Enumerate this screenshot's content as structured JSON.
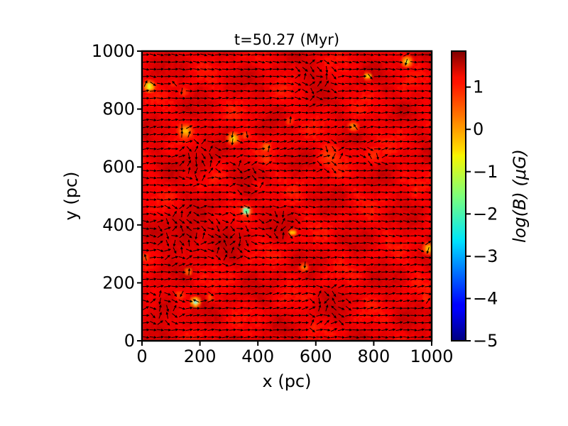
{
  "chart_data": {
    "type": "heatmap",
    "title": "t=50.27 (Myr)",
    "xlabel": "x (pc)",
    "ylabel": "y (pc)",
    "xlim": [
      0,
      1000
    ],
    "ylim": [
      0,
      1000
    ],
    "x_ticks": [
      "0",
      "200",
      "400",
      "600",
      "800",
      "1000"
    ],
    "y_ticks": [
      "0",
      "200",
      "400",
      "600",
      "800",
      "1000"
    ],
    "x_tick_values": [
      0,
      200,
      400,
      600,
      800,
      1000
    ],
    "y_tick_values": [
      0,
      200,
      400,
      600,
      800,
      1000
    ],
    "colorbar": {
      "label": "log(B) (μG)",
      "range": [
        -5,
        1.85
      ],
      "colormap": "jet",
      "ticks": [
        "1",
        "0",
        "−1",
        "−2",
        "−3",
        "−4",
        "−5"
      ],
      "tick_values": [
        1,
        0,
        -1,
        -2,
        -3,
        -4,
        -5
      ]
    },
    "background_value": 1.1,
    "overlay": "magnetic field direction vectors (black arrows)",
    "low_field_regions": [
      {
        "x": 25,
        "y": 880,
        "r": 25,
        "min": -1.5
      },
      {
        "x": 110,
        "y": 890,
        "r": 18,
        "min": 0.6
      },
      {
        "x": 145,
        "y": 860,
        "r": 20,
        "min": 0.4
      },
      {
        "x": 150,
        "y": 725,
        "r": 30,
        "min": -0.6
      },
      {
        "x": 315,
        "y": 700,
        "r": 30,
        "min": -1.0
      },
      {
        "x": 355,
        "y": 710,
        "r": 18,
        "min": 0.2
      },
      {
        "x": 430,
        "y": 670,
        "r": 18,
        "min": -0.2
      },
      {
        "x": 430,
        "y": 625,
        "r": 18,
        "min": 0.4
      },
      {
        "x": 510,
        "y": 760,
        "r": 20,
        "min": 0.3
      },
      {
        "x": 730,
        "y": 740,
        "r": 25,
        "min": -0.4
      },
      {
        "x": 780,
        "y": 915,
        "r": 16,
        "min": -1.5
      },
      {
        "x": 915,
        "y": 965,
        "r": 26,
        "min": -1.0
      },
      {
        "x": 360,
        "y": 450,
        "r": 18,
        "min": -4.3
      },
      {
        "x": 520,
        "y": 375,
        "r": 14,
        "min": -1.5
      },
      {
        "x": 560,
        "y": 255,
        "r": 22,
        "min": -0.3
      },
      {
        "x": 160,
        "y": 240,
        "r": 16,
        "min": -0.5
      },
      {
        "x": 185,
        "y": 135,
        "r": 22,
        "min": -2.2
      },
      {
        "x": 235,
        "y": 150,
        "r": 18,
        "min": 0.2
      },
      {
        "x": 130,
        "y": 160,
        "r": 24,
        "min": 0.3
      },
      {
        "x": 990,
        "y": 320,
        "r": 28,
        "min": -0.9
      },
      {
        "x": 10,
        "y": 290,
        "r": 14,
        "min": -0.2
      },
      {
        "x": 590,
        "y": 50,
        "r": 20,
        "min": 0.6
      },
      {
        "x": 650,
        "y": 640,
        "r": 60,
        "min": 0.5
      },
      {
        "x": 800,
        "y": 640,
        "r": 45,
        "min": 0.6
      },
      {
        "x": 980,
        "y": 150,
        "r": 20,
        "min": 0.6
      },
      {
        "x": 400,
        "y": 540,
        "r": 30,
        "min": 0.7
      }
    ],
    "high_field_regions": [
      {
        "x": 150,
        "y": 370,
        "r": 110,
        "max": 1.55
      },
      {
        "x": 300,
        "y": 350,
        "r": 90,
        "max": 1.5
      },
      {
        "x": 360,
        "y": 570,
        "r": 70,
        "max": 1.45
      },
      {
        "x": 80,
        "y": 120,
        "r": 70,
        "max": 1.5
      },
      {
        "x": 650,
        "y": 120,
        "r": 80,
        "max": 1.4
      },
      {
        "x": 480,
        "y": 400,
        "r": 70,
        "max": 1.4
      },
      {
        "x": 600,
        "y": 900,
        "r": 80,
        "max": 1.4
      },
      {
        "x": 200,
        "y": 620,
        "r": 80,
        "max": 1.45
      }
    ]
  }
}
